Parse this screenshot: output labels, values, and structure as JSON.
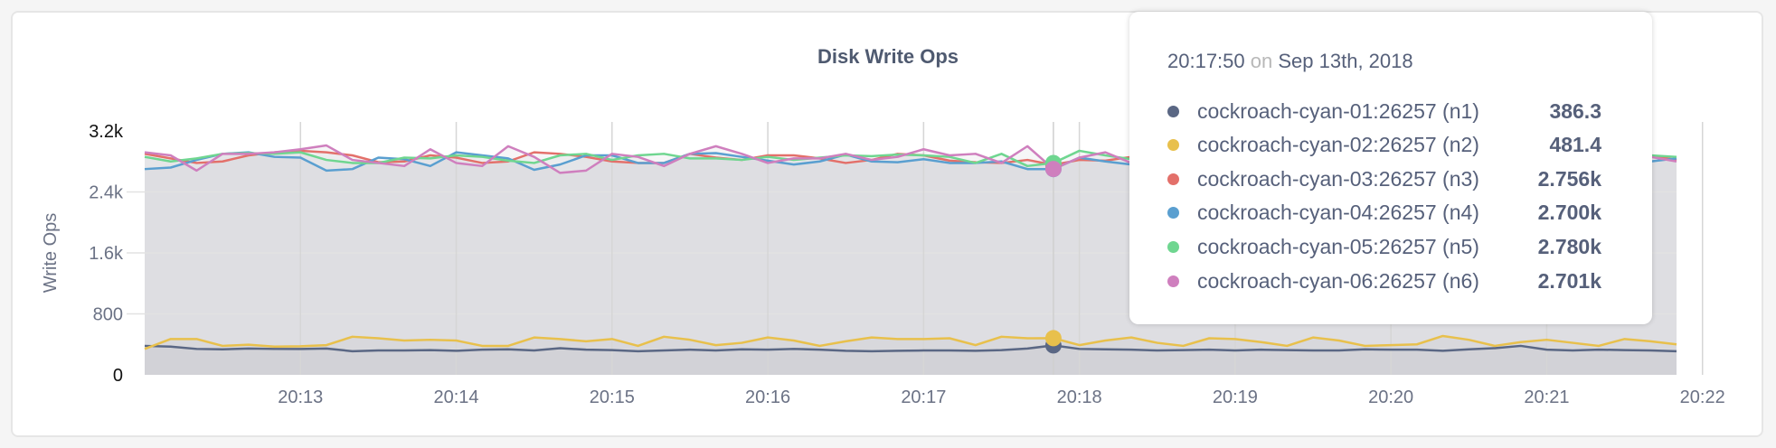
{
  "chart_data": {
    "type": "line",
    "title": "Disk Write Ops",
    "ylabel": "Write Ops",
    "xlabel": "",
    "ylim": [
      0,
      3200
    ],
    "yticks": [
      "0",
      "800",
      "1.6k",
      "2.4k",
      "3.2k"
    ],
    "ytick_values": [
      0,
      800,
      1600,
      2400,
      3200
    ],
    "xticks": [
      "20:13",
      "20:14",
      "20:15",
      "20:16",
      "20:17",
      "20:18",
      "20:19",
      "20:20",
      "20:21",
      "20:22"
    ],
    "x_start": "20:12:00",
    "x_step_seconds": 10,
    "grid": true,
    "series": [
      {
        "name": "cockroach-cyan-01:26257 (n1)",
        "color": "#5a6784",
        "values": [
          380,
          370,
          340,
          335,
          345,
          340,
          340,
          345,
          310,
          320,
          320,
          325,
          315,
          330,
          335,
          320,
          350,
          330,
          325,
          310,
          320,
          330,
          320,
          335,
          330,
          340,
          330,
          315,
          310,
          315,
          320,
          320,
          315,
          325,
          345,
          386.3,
          340,
          335,
          330,
          320,
          325,
          330,
          320,
          330,
          325,
          320,
          320,
          335,
          330,
          330,
          315,
          335,
          350,
          380,
          330,
          320,
          330,
          325,
          320,
          310
        ]
      },
      {
        "name": "cockroach-cyan-02:26257 (n2)",
        "color": "#e8c04c",
        "values": [
          340,
          470,
          470,
          380,
          395,
          370,
          375,
          390,
          500,
          480,
          450,
          460,
          450,
          380,
          380,
          490,
          470,
          440,
          470,
          380,
          500,
          460,
          390,
          420,
          490,
          450,
          380,
          440,
          490,
          470,
          470,
          480,
          390,
          500,
          480,
          481.4,
          390,
          450,
          490,
          420,
          380,
          480,
          470,
          430,
          380,
          490,
          450,
          380,
          390,
          400,
          510,
          460,
          380,
          430,
          460,
          420,
          380,
          470,
          440,
          400
        ]
      },
      {
        "name": "cockroach-cyan-03:26257 (n3)",
        "color": "#e3706a",
        "values": [
          2900,
          2840,
          2780,
          2800,
          2880,
          2920,
          2940,
          2920,
          2880,
          2790,
          2800,
          2880,
          2850,
          2780,
          2800,
          2920,
          2900,
          2860,
          2800,
          2780,
          2780,
          2900,
          2850,
          2820,
          2880,
          2880,
          2840,
          2780,
          2820,
          2900,
          2880,
          2810,
          2790,
          2780,
          2820,
          2756,
          2820,
          2810,
          2860,
          2830,
          2780,
          2800,
          2850,
          2880,
          2830,
          2800,
          2850,
          2900,
          2830,
          2860,
          2800,
          2880,
          2820,
          2860,
          2900,
          2830,
          2850,
          2800,
          2880,
          2820
        ]
      },
      {
        "name": "cockroach-cyan-04:26257 (n4)",
        "color": "#5a9fd0",
        "values": [
          2700,
          2720,
          2820,
          2900,
          2920,
          2860,
          2850,
          2680,
          2700,
          2850,
          2830,
          2740,
          2920,
          2880,
          2840,
          2690,
          2760,
          2880,
          2880,
          2780,
          2780,
          2900,
          2910,
          2860,
          2810,
          2760,
          2800,
          2890,
          2800,
          2790,
          2830,
          2780,
          2780,
          2800,
          2700,
          2700,
          2850,
          2800,
          2760,
          2900,
          2820,
          2760,
          2840,
          2880,
          2800,
          2760,
          2820,
          2860,
          2800,
          2780,
          2840,
          2880,
          2800,
          2760,
          2850,
          2820,
          2780,
          2860,
          2800,
          2840
        ]
      },
      {
        "name": "cockroach-cyan-05:26257 (n5)",
        "color": "#6fd690",
        "values": [
          2860,
          2800,
          2840,
          2900,
          2910,
          2900,
          2920,
          2820,
          2780,
          2780,
          2850,
          2840,
          2880,
          2860,
          2810,
          2780,
          2880,
          2900,
          2820,
          2880,
          2900,
          2840,
          2840,
          2820,
          2860,
          2820,
          2850,
          2880,
          2870,
          2890,
          2880,
          2860,
          2780,
          2900,
          2740,
          2780,
          2940,
          2880,
          2830,
          2860,
          2800,
          2870,
          2900,
          2840,
          2820,
          2880,
          2860,
          2800,
          2850,
          2900,
          2820,
          2860,
          2880,
          2800,
          2840,
          2900,
          2860,
          2820,
          2880,
          2860
        ]
      },
      {
        "name": "cockroach-cyan-06:26257 (n6)",
        "color": "#cf7fbe",
        "values": [
          2920,
          2880,
          2680,
          2900,
          2900,
          2920,
          2960,
          3010,
          2820,
          2780,
          2740,
          2960,
          2780,
          2740,
          3000,
          2860,
          2650,
          2680,
          2900,
          2860,
          2740,
          2900,
          3000,
          2900,
          2780,
          2840,
          2840,
          2900,
          2820,
          2860,
          2960,
          2880,
          2900,
          2780,
          3000,
          2701,
          2850,
          2920,
          2780,
          2880,
          2960,
          2820,
          2780,
          2900,
          2860,
          2800,
          2900,
          2840,
          2780,
          2880,
          2920,
          2800,
          2860,
          2900,
          2820,
          2780,
          2880,
          2840,
          2860,
          2800
        ]
      }
    ],
    "tooltip": {
      "time": "20:17:50",
      "on": "on",
      "date": "Sep 13th, 2018",
      "hover_index": 35,
      "rows": [
        {
          "label": "cockroach-cyan-01:26257 (n1)",
          "value": "386.3",
          "color": "#5a6784"
        },
        {
          "label": "cockroach-cyan-02:26257 (n2)",
          "value": "481.4",
          "color": "#e8c04c"
        },
        {
          "label": "cockroach-cyan-03:26257 (n3)",
          "value": "2.756k",
          "color": "#e3706a"
        },
        {
          "label": "cockroach-cyan-04:26257 (n4)",
          "value": "2.700k",
          "color": "#5a9fd0"
        },
        {
          "label": "cockroach-cyan-05:26257 (n5)",
          "value": "2.780k",
          "color": "#6fd690"
        },
        {
          "label": "cockroach-cyan-06:26257 (n6)",
          "value": "2.701k",
          "color": "#cf7fbe"
        }
      ]
    }
  }
}
